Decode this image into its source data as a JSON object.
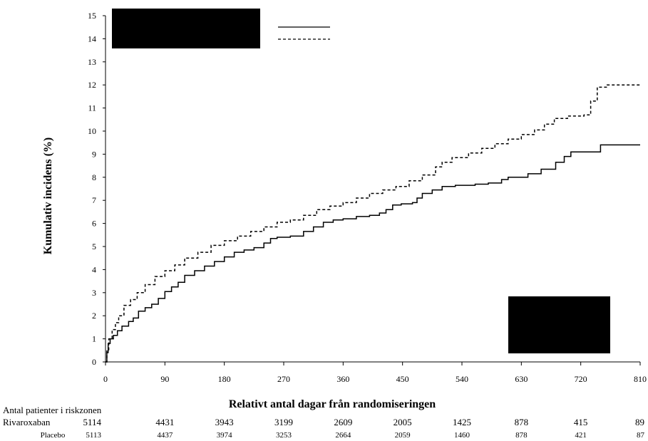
{
  "chart_data": {
    "type": "line",
    "title": "",
    "xlabel": "Relativt antal dagar från randomiseringen",
    "ylabel": "Kumulativ incidens (%)",
    "xlim": [
      0,
      810
    ],
    "ylim": [
      0,
      15
    ],
    "xticks": [
      0,
      90,
      180,
      270,
      360,
      450,
      540,
      630,
      720,
      810
    ],
    "yticks": [
      0,
      1,
      2,
      3,
      4,
      5,
      6,
      7,
      8,
      9,
      10,
      11,
      12,
      13,
      14,
      15
    ],
    "grid": false,
    "legend_position": "top",
    "series": [
      {
        "style": "solid",
        "points": [
          [
            0,
            0
          ],
          [
            2,
            0.4
          ],
          [
            4,
            0.8
          ],
          [
            7,
            1.0
          ],
          [
            12,
            1.15
          ],
          [
            18,
            1.35
          ],
          [
            25,
            1.55
          ],
          [
            35,
            1.75
          ],
          [
            42,
            1.9
          ],
          [
            50,
            2.2
          ],
          [
            60,
            2.35
          ],
          [
            70,
            2.5
          ],
          [
            80,
            2.75
          ],
          [
            90,
            3.05
          ],
          [
            100,
            3.25
          ],
          [
            110,
            3.45
          ],
          [
            120,
            3.75
          ],
          [
            135,
            3.95
          ],
          [
            150,
            4.15
          ],
          [
            165,
            4.35
          ],
          [
            180,
            4.55
          ],
          [
            195,
            4.75
          ],
          [
            210,
            4.85
          ],
          [
            225,
            4.95
          ],
          [
            240,
            5.15
          ],
          [
            250,
            5.35
          ],
          [
            260,
            5.4
          ],
          [
            280,
            5.45
          ],
          [
            300,
            5.65
          ],
          [
            315,
            5.85
          ],
          [
            330,
            6.05
          ],
          [
            345,
            6.15
          ],
          [
            360,
            6.2
          ],
          [
            380,
            6.3
          ],
          [
            400,
            6.35
          ],
          [
            415,
            6.45
          ],
          [
            425,
            6.6
          ],
          [
            435,
            6.8
          ],
          [
            448,
            6.85
          ],
          [
            465,
            6.9
          ],
          [
            472,
            7.1
          ],
          [
            480,
            7.3
          ],
          [
            495,
            7.45
          ],
          [
            510,
            7.6
          ],
          [
            530,
            7.65
          ],
          [
            560,
            7.7
          ],
          [
            580,
            7.75
          ],
          [
            600,
            7.9
          ],
          [
            610,
            8.0
          ],
          [
            640,
            8.15
          ],
          [
            660,
            8.35
          ],
          [
            682,
            8.65
          ],
          [
            695,
            8.9
          ],
          [
            705,
            9.1
          ],
          [
            750,
            9.4
          ],
          [
            810,
            9.4
          ]
        ]
      },
      {
        "style": "dashed",
        "points": [
          [
            0,
            0
          ],
          [
            2,
            0.5
          ],
          [
            5,
            1.0
          ],
          [
            10,
            1.4
          ],
          [
            15,
            1.7
          ],
          [
            20,
            2.0
          ],
          [
            28,
            2.45
          ],
          [
            38,
            2.7
          ],
          [
            48,
            3.0
          ],
          [
            60,
            3.35
          ],
          [
            75,
            3.7
          ],
          [
            90,
            3.95
          ],
          [
            105,
            4.2
          ],
          [
            120,
            4.5
          ],
          [
            140,
            4.75
          ],
          [
            160,
            5.05
          ],
          [
            180,
            5.25
          ],
          [
            200,
            5.45
          ],
          [
            220,
            5.65
          ],
          [
            240,
            5.85
          ],
          [
            260,
            6.05
          ],
          [
            280,
            6.15
          ],
          [
            300,
            6.35
          ],
          [
            320,
            6.6
          ],
          [
            340,
            6.75
          ],
          [
            360,
            6.9
          ],
          [
            380,
            7.1
          ],
          [
            400,
            7.3
          ],
          [
            420,
            7.45
          ],
          [
            440,
            7.6
          ],
          [
            460,
            7.85
          ],
          [
            480,
            8.1
          ],
          [
            500,
            8.45
          ],
          [
            510,
            8.65
          ],
          [
            525,
            8.85
          ],
          [
            550,
            9.05
          ],
          [
            570,
            9.25
          ],
          [
            590,
            9.45
          ],
          [
            610,
            9.65
          ],
          [
            630,
            9.85
          ],
          [
            650,
            10.05
          ],
          [
            665,
            10.3
          ],
          [
            680,
            10.55
          ],
          [
            700,
            10.65
          ],
          [
            725,
            10.7
          ],
          [
            735,
            11.3
          ],
          [
            745,
            11.9
          ],
          [
            760,
            12.0
          ],
          [
            810,
            12.0
          ]
        ]
      }
    ],
    "risk_table": {
      "header": "Antal patienter i riskzonen",
      "rows": [
        {
          "label": "Rivaroxaban",
          "values": [
            "5114",
            "4431",
            "3943",
            "3199",
            "2609",
            "2005",
            "1425",
            "878",
            "415",
            "89"
          ]
        },
        {
          "label": "Placebo",
          "values": [
            "5113",
            "4437",
            "3974",
            "3253",
            "2664",
            "2059",
            "1460",
            "878",
            "421",
            "87"
          ]
        }
      ]
    }
  }
}
